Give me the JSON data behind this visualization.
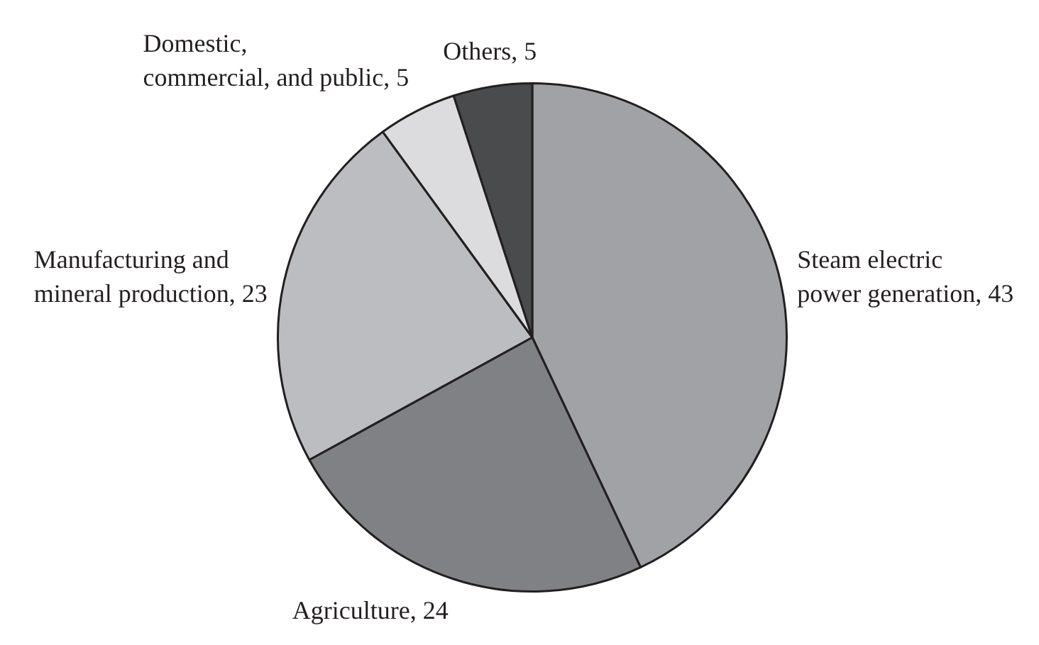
{
  "chart_data": {
    "type": "pie",
    "categories": [
      "Steam electric power generation",
      "Agriculture",
      "Manufacturing and mineral production",
      "Domestic, commercial, and public",
      "Others"
    ],
    "values": [
      43,
      24,
      23,
      5,
      5
    ],
    "value_labels": [
      ", 43",
      ", 24",
      ", 23",
      ", 5",
      ", 5"
    ],
    "colors": [
      "#a1a2a5",
      "#808184",
      "#bcbdc0",
      "#dcdcde",
      "#4a4b4d"
    ]
  }
}
